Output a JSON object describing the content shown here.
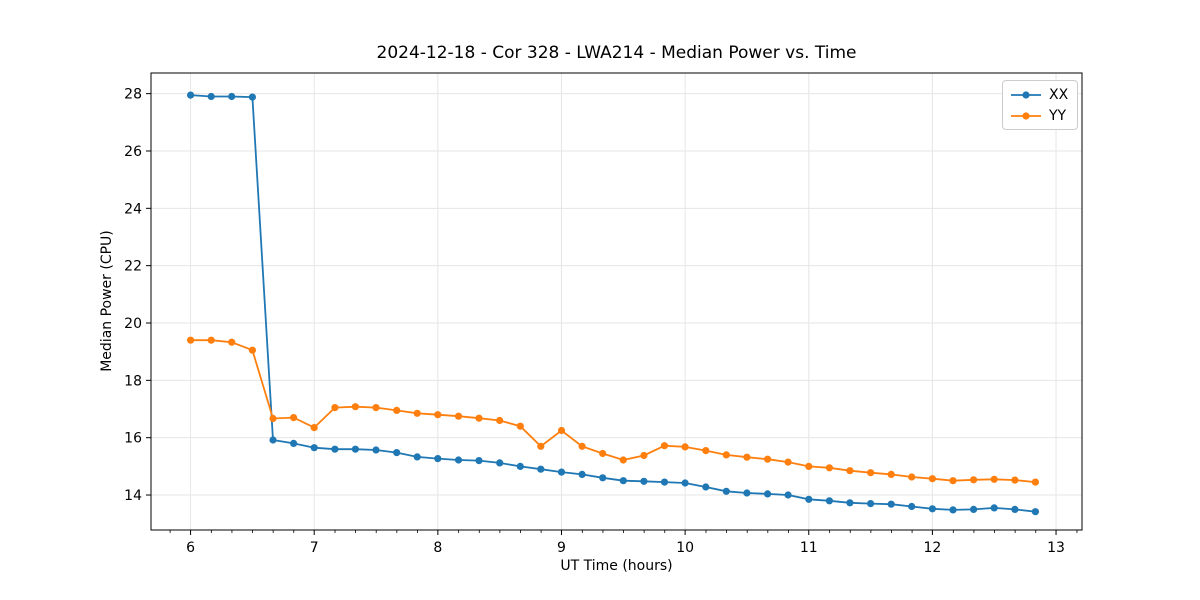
{
  "chart_data": {
    "type": "line",
    "title": "2024-12-18 - Cor 328 - LWA214 - Median Power vs. Time",
    "xlabel": "UT Time (hours)",
    "ylabel": "Median Power (CPU)",
    "xlim": [
      5.68,
      13.21
    ],
    "ylim": [
      12.78,
      28.72
    ],
    "x_ticks": [
      6,
      7,
      8,
      9,
      10,
      11,
      12,
      13
    ],
    "y_ticks": [
      14,
      16,
      18,
      20,
      22,
      24,
      26,
      28
    ],
    "x_minor_step": 0.1667,
    "grid": true,
    "grid_color": "#e6e6e6",
    "legend_position": "upper right",
    "x": [
      6.0,
      6.167,
      6.333,
      6.5,
      6.667,
      6.833,
      7.0,
      7.167,
      7.333,
      7.5,
      7.667,
      7.833,
      8.0,
      8.167,
      8.333,
      8.5,
      8.667,
      8.833,
      9.0,
      9.167,
      9.333,
      9.5,
      9.667,
      9.833,
      10.0,
      10.167,
      10.333,
      10.5,
      10.667,
      10.833,
      11.0,
      11.167,
      11.333,
      11.5,
      11.667,
      11.833,
      12.0,
      12.167,
      12.333,
      12.5,
      12.667,
      12.833
    ],
    "series": [
      {
        "name": "XX",
        "color": "#1f77b4",
        "values": [
          27.95,
          27.9,
          27.9,
          27.88,
          15.92,
          15.8,
          15.65,
          15.6,
          15.6,
          15.57,
          15.48,
          15.33,
          15.27,
          15.22,
          15.2,
          15.12,
          15.0,
          14.9,
          14.8,
          14.72,
          14.6,
          14.5,
          14.48,
          14.45,
          14.42,
          14.28,
          14.13,
          14.07,
          14.04,
          14.0,
          13.85,
          13.8,
          13.73,
          13.7,
          13.68,
          13.6,
          13.52,
          13.48,
          13.5,
          13.55,
          13.5,
          13.42
        ]
      },
      {
        "name": "YY",
        "color": "#ff7f0e",
        "values": [
          19.4,
          19.4,
          19.33,
          19.05,
          16.67,
          16.7,
          16.35,
          17.05,
          17.08,
          17.05,
          16.95,
          16.85,
          16.8,
          16.75,
          16.68,
          16.6,
          16.4,
          15.7,
          16.25,
          15.7,
          15.45,
          15.22,
          15.38,
          15.72,
          15.68,
          15.55,
          15.4,
          15.32,
          15.25,
          15.15,
          15.0,
          14.95,
          14.85,
          14.78,
          14.72,
          14.63,
          14.57,
          14.5,
          14.53,
          14.55,
          14.52,
          14.45
        ]
      }
    ]
  }
}
